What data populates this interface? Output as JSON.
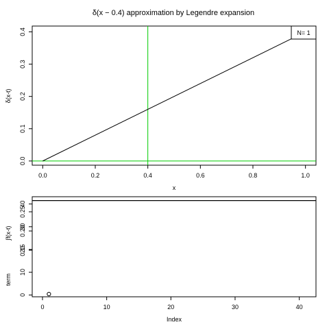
{
  "chart_data": [
    {
      "type": "line",
      "title": "δ(x − 0.4) approximation by Legendre expansion",
      "xlabel": "x",
      "ylabel": "δ(x-t)",
      "xlim": [
        -0.04,
        1.04
      ],
      "ylim": [
        -0.013,
        0.418
      ],
      "x_ticks": [
        0.0,
        0.2,
        0.4,
        0.6,
        0.8,
        1.0
      ],
      "x_tick_labels": [
        "0.0",
        "0.2",
        "0.4",
        "0.6",
        "0.8",
        "1.0"
      ],
      "y_ticks": [
        0.0,
        0.1,
        0.2,
        0.3,
        0.4
      ],
      "y_tick_labels": [
        "0.0",
        "0.1",
        "0.2",
        "0.3",
        "0.4"
      ],
      "series": [
        {
          "x": [
            0.0,
            1.0
          ],
          "values": [
            0.0,
            0.4
          ],
          "color": "#000000"
        }
      ],
      "reference_lines": [
        {
          "orientation": "vertical",
          "value": 0.4,
          "color": "#00cc00"
        },
        {
          "orientation": "horizontal",
          "value": 0.0,
          "color": "#00cc00"
        }
      ],
      "legend": {
        "text": "N= 1",
        "placement": "top-right"
      }
    },
    {
      "type": "scatter",
      "xlabel": "Index",
      "ylabel_upper": "∫f(x-t)",
      "ylabel_lower": "term",
      "xlim": [
        -1.6,
        42.6
      ],
      "ylim": [
        -0.8,
        43.2
      ],
      "x_ticks": [
        0,
        10,
        20,
        30,
        40
      ],
      "x_tick_labels": [
        "0",
        "10",
        "20",
        "30",
        "40"
      ],
      "y_ticks_lower": [
        0,
        10,
        20,
        30,
        40
      ],
      "y_tick_labels_lower": [
        "0",
        "10",
        "20",
        "30",
        "40"
      ],
      "y_tick_labels_upper": [
        "0.15",
        "0.20",
        "0.25"
      ],
      "reference_lines": [
        {
          "orientation": "horizontal",
          "value": 41.5,
          "color": "#000000"
        }
      ],
      "points": [
        {
          "x": 1,
          "y": 0.4
        }
      ]
    }
  ]
}
